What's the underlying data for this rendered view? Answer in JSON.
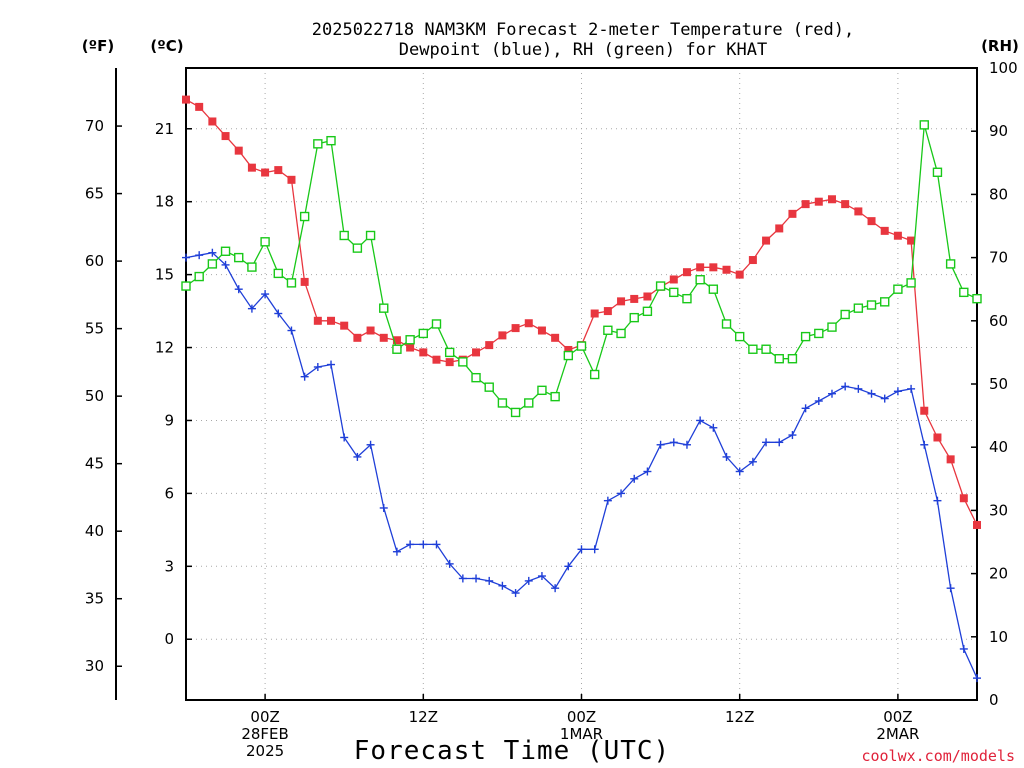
{
  "chart_data": {
    "type": "line",
    "title": [
      "2025022718 NAM3KM Forecast 2-meter Temperature (red),",
      "Dewpoint (blue), RH (green) for KHAT"
    ],
    "xlabel": "Forecast Time (UTC)",
    "units": {
      "fahrenheit": "(ºF)",
      "celsius": "(ºC)",
      "rh": "(RH)"
    },
    "credit": "coolwx.com/models",
    "x_hours_range": [
      -6,
      54
    ],
    "x_ticks": [
      {
        "hour": 0,
        "lines": [
          "00Z",
          "28FEB",
          "2025"
        ]
      },
      {
        "hour": 12,
        "lines": [
          "12Z"
        ]
      },
      {
        "hour": 24,
        "lines": [
          "00Z",
          "1MAR"
        ]
      },
      {
        "hour": 36,
        "lines": [
          "12Z"
        ]
      },
      {
        "hour": 48,
        "lines": [
          "00Z",
          "2MAR"
        ]
      }
    ],
    "celsius_axis": {
      "range": [
        -2.5,
        23.5
      ],
      "ticks": [
        "0",
        "3",
        "6",
        "9",
        "12",
        "15",
        "18",
        "21"
      ]
    },
    "fahrenheit_axis": {
      "ticks": [
        "30",
        "35",
        "40",
        "45",
        "50",
        "55",
        "60",
        "65",
        "70"
      ]
    },
    "rh_axis": {
      "range": [
        0,
        100
      ],
      "ticks": [
        "0",
        "10",
        "20",
        "30",
        "40",
        "50",
        "60",
        "70",
        "80",
        "90",
        "100"
      ]
    },
    "grid": true,
    "colors": {
      "temperature": "#e8363f",
      "dewpoint": "#1f3fd8",
      "rh": "#18c818"
    },
    "series": [
      {
        "name": "Temperature",
        "axis": "celsius",
        "marker": "filled-square",
        "x": [
          -6,
          -5,
          -4,
          -3,
          -2,
          -1,
          0,
          1,
          2,
          3,
          4,
          5,
          6,
          7,
          8,
          9,
          10,
          11,
          12,
          13,
          14,
          15,
          16,
          17,
          18,
          19,
          20,
          21,
          22,
          23,
          24,
          25,
          26,
          27,
          28,
          29,
          30,
          31,
          32,
          33,
          34,
          35,
          36,
          37,
          38,
          39,
          40,
          41,
          42,
          43,
          44,
          45,
          46,
          47,
          48,
          49,
          50,
          51,
          52,
          53,
          54
        ],
        "values": [
          22.2,
          21.9,
          21.3,
          20.7,
          20.1,
          19.4,
          19.2,
          19.3,
          18.9,
          14.7,
          13.1,
          13.1,
          12.9,
          12.4,
          12.7,
          12.4,
          12.3,
          12.0,
          11.8,
          11.5,
          11.4,
          11.5,
          11.8,
          12.1,
          12.5,
          12.8,
          13.0,
          12.7,
          12.4,
          11.9,
          12.1,
          13.4,
          13.5,
          13.9,
          14.0,
          14.1,
          14.5,
          14.8,
          15.1,
          15.3,
          15.3,
          15.2,
          15.0,
          15.6,
          16.4,
          16.9,
          17.5,
          17.9,
          18.0,
          18.1,
          17.9,
          17.6,
          17.2,
          16.8,
          16.6,
          16.4,
          9.4,
          8.3,
          7.4,
          5.8,
          4.7
        ]
      },
      {
        "name": "Dewpoint",
        "axis": "celsius",
        "marker": "plus",
        "x": [
          -6,
          -5,
          -4,
          -3,
          -2,
          -1,
          0,
          1,
          2,
          3,
          4,
          5,
          6,
          7,
          8,
          9,
          10,
          11,
          12,
          13,
          14,
          15,
          16,
          17,
          18,
          19,
          20,
          21,
          22,
          23,
          24,
          25,
          26,
          27,
          28,
          29,
          30,
          31,
          32,
          33,
          34,
          35,
          36,
          37,
          38,
          39,
          40,
          41,
          42,
          43,
          44,
          45,
          46,
          47,
          48,
          49,
          50,
          51,
          52,
          53,
          54
        ],
        "values": [
          15.7,
          15.8,
          15.9,
          15.4,
          14.4,
          13.6,
          14.2,
          13.4,
          12.7,
          10.8,
          11.2,
          11.3,
          8.3,
          7.5,
          8.0,
          5.4,
          3.6,
          3.9,
          3.9,
          3.9,
          3.1,
          2.5,
          2.5,
          2.4,
          2.2,
          1.9,
          2.4,
          2.6,
          2.1,
          3.0,
          3.7,
          3.7,
          5.7,
          6.0,
          6.6,
          6.9,
          8.0,
          8.1,
          8.0,
          9.0,
          8.7,
          7.5,
          6.9,
          7.3,
          8.1,
          8.1,
          8.4,
          9.5,
          9.8,
          10.1,
          10.4,
          10.3,
          10.1,
          9.9,
          10.2,
          10.3,
          8.0,
          5.7,
          2.1,
          -0.4,
          -1.6
        ]
      },
      {
        "name": "RH",
        "axis": "rh",
        "marker": "open-square",
        "x": [
          -6,
          -5,
          -4,
          -3,
          -2,
          -1,
          0,
          1,
          2,
          3,
          4,
          5,
          6,
          7,
          8,
          9,
          10,
          11,
          12,
          13,
          14,
          15,
          16,
          17,
          18,
          19,
          20,
          21,
          22,
          23,
          24,
          25,
          26,
          27,
          28,
          29,
          30,
          31,
          32,
          33,
          34,
          35,
          36,
          37,
          38,
          39,
          40,
          41,
          42,
          43,
          44,
          45,
          46,
          47,
          48,
          49,
          50,
          51,
          52,
          53,
          54
        ],
        "values": [
          65.5,
          67.0,
          69.0,
          71.0,
          70.0,
          68.5,
          72.5,
          67.5,
          66.0,
          76.5,
          88.0,
          88.5,
          73.5,
          71.5,
          73.5,
          62.0,
          55.5,
          57.0,
          58.0,
          59.5,
          55.0,
          53.5,
          51.0,
          49.5,
          47.0,
          45.5,
          47.0,
          49.0,
          48.0,
          54.5,
          56.0,
          51.5,
          58.5,
          58.0,
          60.5,
          61.5,
          65.5,
          64.5,
          63.5,
          66.5,
          65.0,
          59.5,
          57.5,
          55.5,
          55.5,
          54.0,
          54.0,
          57.5,
          58.0,
          59.0,
          61.0,
          62.0,
          62.5,
          63.0,
          65.0,
          66.0,
          91.0,
          83.5,
          69.0,
          64.5,
          63.5
        ]
      }
    ]
  }
}
